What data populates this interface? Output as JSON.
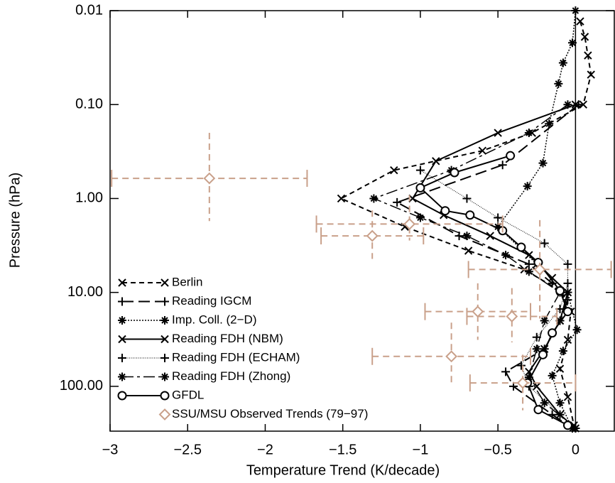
{
  "chart_data": {
    "type": "profile",
    "x_label": "Temperature Trend (K/decade)",
    "y_label": "Pressure (hPa)",
    "xlim": [
      -3,
      0.25
    ],
    "xticks": [
      {
        "value": -3,
        "label": "−3"
      },
      {
        "value": -2.5,
        "label": "−2.5"
      },
      {
        "value": -2,
        "label": "−2"
      },
      {
        "value": -1.5,
        "label": "−1.5"
      },
      {
        "value": -1,
        "label": "−1"
      },
      {
        "value": -0.5,
        "label": "−0.5"
      },
      0
    ],
    "ylim": [
      300,
      0.01
    ],
    "y_scale": "log",
    "yticks": [
      {
        "value": 0.01,
        "label": "0.01"
      },
      {
        "value": 0.1,
        "label": "0.10"
      },
      {
        "value": 1,
        "label": "1.00"
      },
      {
        "value": 10,
        "label": "10.00"
      },
      {
        "value": 100,
        "label": "100.00"
      }
    ],
    "zero_line": 0,
    "legend": "lower-left",
    "series": [
      {
        "name": "Berlin",
        "color": "#000000",
        "line": "dashed",
        "marker": "x",
        "x": [
          0.03,
          0.06,
          0.08,
          0.1,
          0.05,
          -0.28,
          -0.6,
          -1.17,
          -1.51,
          -1.1,
          -0.69,
          -0.33,
          -0.1,
          -0.03,
          -0.05,
          -0.1,
          -0.05,
          -0.01
        ],
        "y": [
          0.013,
          0.019,
          0.03,
          0.048,
          0.1,
          0.2,
          0.31,
          0.5,
          1.0,
          2.0,
          3.6,
          5.7,
          9.6,
          16,
          32,
          65,
          130,
          260
        ]
      },
      {
        "name": "Reading IGCM",
        "color": "#000000",
        "line": "long-dashed",
        "marker": "plus",
        "x": [
          0.02,
          -0.47,
          -1.15,
          -0.75,
          -0.3,
          -0.15,
          -0.05,
          -0.1,
          -0.2,
          -0.45,
          -0.4,
          -0.15,
          -0.02
        ],
        "y": [
          0.1,
          0.44,
          1.1,
          2.5,
          5,
          8,
          12,
          20,
          40,
          70,
          100,
          200,
          280
        ]
      },
      {
        "name": "Imp. Coll. (2−D)",
        "color": "#000000",
        "line": "dotted",
        "marker": "star",
        "x": [
          0.0,
          -0.02,
          -0.08,
          -0.11,
          -0.17,
          -0.21,
          -0.31,
          -0.5,
          -0.25,
          -0.05,
          0.01,
          -0.08,
          -0.15,
          -0.1,
          -0.02
        ],
        "y": [
          0.01,
          0.022,
          0.036,
          0.06,
          0.16,
          0.42,
          0.74,
          2,
          5,
          10,
          25,
          42,
          77,
          150,
          280
        ]
      },
      {
        "name": "Reading FDH (NBM)",
        "color": "#000000",
        "line": "solid",
        "marker": "x",
        "x": [
          0.0,
          -0.5,
          -0.9,
          -1.05,
          -0.85,
          -0.55,
          -0.3,
          -0.15,
          -0.05,
          -0.1,
          -0.2,
          -0.3,
          -0.25,
          -0.1,
          0.0
        ],
        "y": [
          0.1,
          0.2,
          0.4,
          1.0,
          1.5,
          2.5,
          4,
          7,
          10,
          20,
          40,
          70,
          100,
          200,
          280
        ]
      },
      {
        "name": "Reading FDH (ECHAM)",
        "color": "#000000",
        "line": "fine-dotted",
        "marker": "plus",
        "x": [
          -1.0,
          -0.7,
          -0.5,
          -0.2,
          -0.05,
          -0.05,
          -0.1,
          -0.25,
          -0.35,
          -0.3,
          -0.1,
          0.0
        ],
        "y": [
          0.5,
          1.0,
          1.6,
          3,
          5,
          8,
          15,
          30,
          60,
          100,
          200,
          280
        ]
      },
      {
        "name": "Reading FDH (Zhong)",
        "color": "#000000",
        "line": "dash-dot",
        "marker": "star",
        "x": [
          -0.05,
          -0.3,
          -0.8,
          -1.3,
          -1.0,
          -0.7,
          -0.45,
          -0.3,
          -0.1,
          -0.2,
          -0.25,
          -0.3,
          -0.2,
          0.0
        ],
        "y": [
          0.1,
          0.2,
          0.5,
          1.0,
          1.6,
          2.5,
          4,
          6,
          10,
          20,
          40,
          80,
          150,
          280
        ]
      },
      {
        "name": "GFDL",
        "color": "#000000",
        "line": "solid",
        "marker": "circle",
        "x": [
          -0.42,
          -0.78,
          -1.0,
          -0.84,
          -0.68,
          -0.47,
          -0.35,
          -0.24,
          -0.1,
          -0.05,
          -0.15,
          -0.21,
          -0.31,
          -0.24,
          -0.05
        ],
        "y": [
          0.35,
          0.53,
          0.77,
          1.35,
          1.5,
          2.2,
          3.3,
          4.8,
          9.6,
          16,
          27,
          46,
          92,
          177,
          260
        ]
      },
      {
        "name": "SSU/MSU Observed Trends (79−97)",
        "color": "#c9a08a",
        "line": "none",
        "marker": "diamond",
        "x": [
          -2.36,
          -1.31,
          -1.07,
          -0.23,
          -0.63,
          -0.41,
          -0.8,
          -0.34
        ],
        "y": [
          0.61,
          2.5,
          1.87,
          5.7,
          16,
          18,
          48,
          92
        ],
        "x_err": [
          0.63,
          0.33,
          0.6,
          0.46,
          0.34,
          0.29,
          0.51,
          0.34
        ],
        "y_range": [
          [
            0.2,
            1.74
          ],
          [
            1.34,
            4.4
          ],
          [
            0.92,
            2.8
          ],
          [
            1.7,
            19
          ],
          [
            8,
            32
          ],
          [
            9,
            34
          ],
          [
            21,
            100
          ],
          [
            46,
            180
          ]
        ]
      }
    ]
  }
}
